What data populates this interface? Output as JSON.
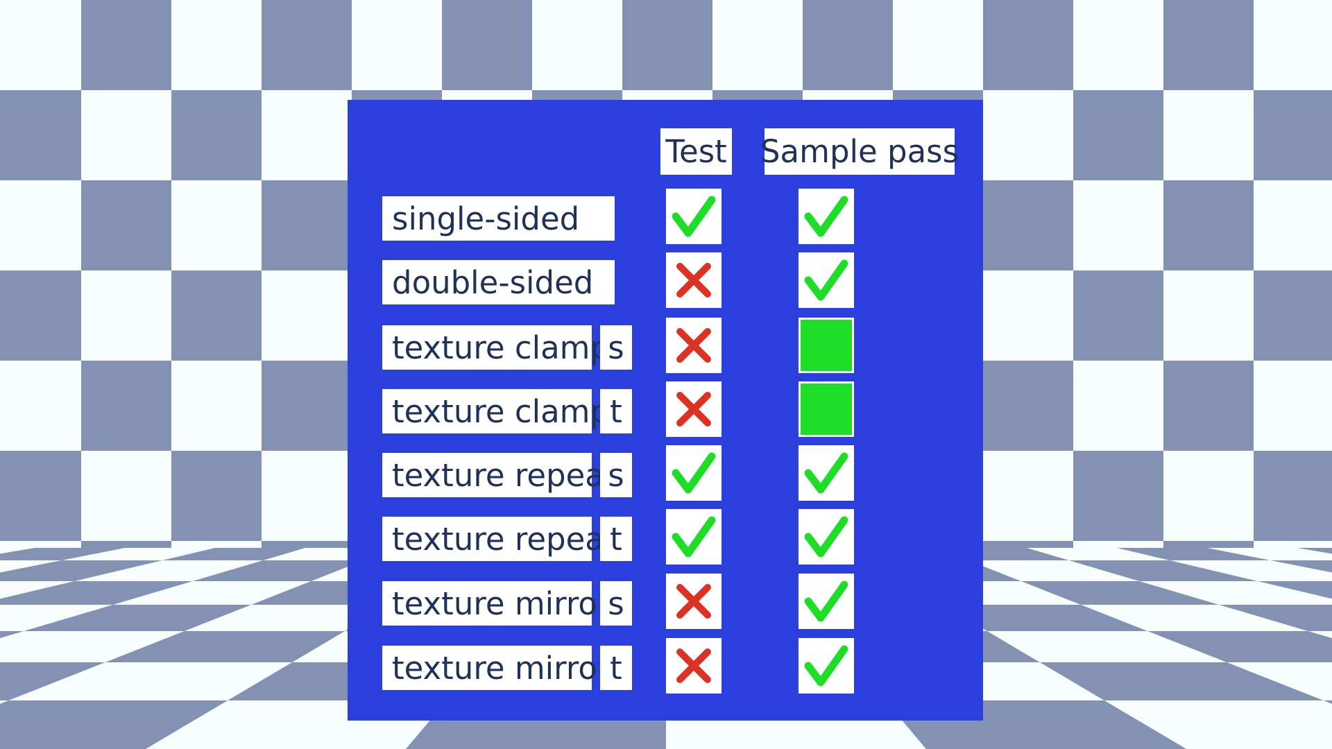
{
  "colors": {
    "panel_blue": "#2a3fdc",
    "checker_blue": "#8391b3",
    "checker_white": "#f8fdfe",
    "check_green": "#1ddd26",
    "cross_red": "#db3224",
    "label_text": "#1f3157"
  },
  "headers": {
    "test": "Test",
    "sample_pass": "Sample pass"
  },
  "rows": [
    {
      "label": "single-sided",
      "suffix": "",
      "test": "check",
      "sample": "check"
    },
    {
      "label": "double-sided",
      "suffix": "",
      "test": "cross",
      "sample": "check"
    },
    {
      "label": "texture clamp",
      "suffix": "s",
      "test": "cross",
      "sample": "green-square"
    },
    {
      "label": "texture clamp",
      "suffix": "t",
      "test": "cross",
      "sample": "green-square"
    },
    {
      "label": "texture repeat",
      "suffix": "s",
      "test": "check",
      "sample": "check"
    },
    {
      "label": "texture repeat",
      "suffix": "t",
      "test": "check",
      "sample": "check"
    },
    {
      "label": "texture mirror",
      "suffix": "s",
      "test": "cross",
      "sample": "check"
    },
    {
      "label": "texture mirror",
      "suffix": "t",
      "test": "cross",
      "sample": "check"
    }
  ]
}
